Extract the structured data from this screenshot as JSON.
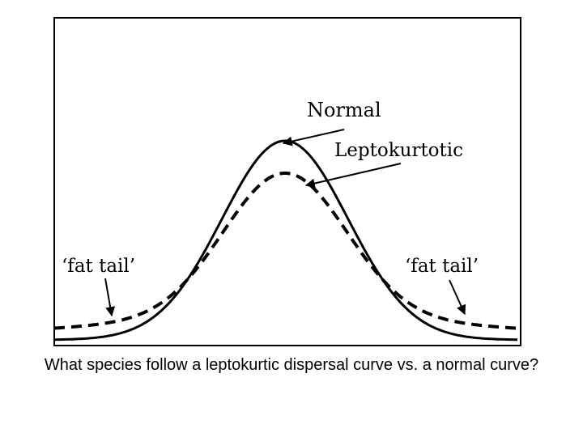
{
  "diagram": {
    "labels": {
      "normal": "Normal",
      "leptokurtotic": "Leptokurtotic",
      "fat_tail_left": "‘fat tail’",
      "fat_tail_right": "‘fat tail’"
    },
    "curves": [
      {
        "name": "Normal",
        "style": "solid"
      },
      {
        "name": "Leptokurtotic",
        "style": "dashed"
      }
    ],
    "colors": {
      "line": "#000000",
      "background": "#ffffff"
    }
  },
  "caption": "What species follow a leptokurtic dispersal curve vs. a normal curve?"
}
